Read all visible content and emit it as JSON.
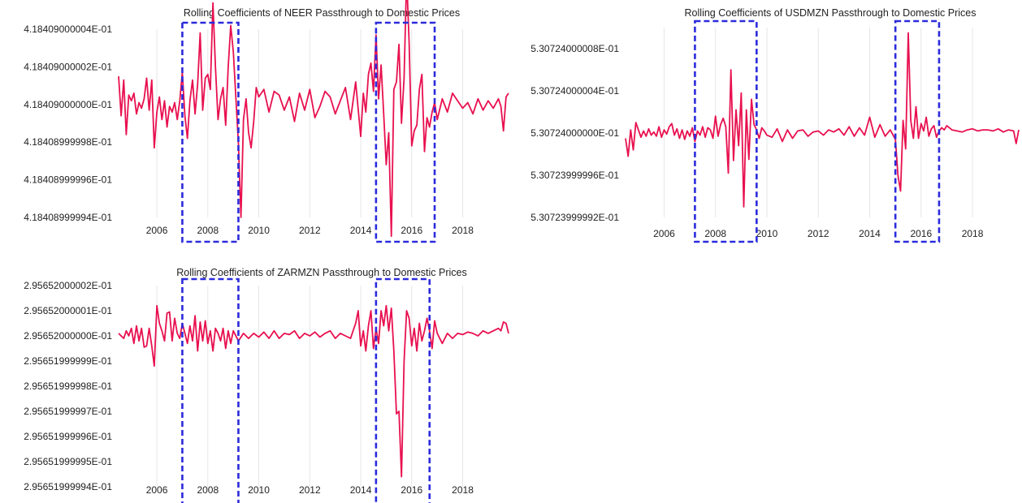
{
  "colors": {
    "series": "#e8104f",
    "box": "#2b2bdc"
  },
  "chart_data": [
    {
      "type": "line",
      "title": "Rolling Coefficients of NEER Passthrough to Domestic Prices",
      "xlabel": "",
      "ylabel": "",
      "xlim": [
        2004.5,
        2019.8
      ],
      "ylim": [
        0.418408999994,
        0.418409000004
      ],
      "x_ticks": [
        2006,
        2008,
        2010,
        2012,
        2014,
        2016,
        2018
      ],
      "x_tick_labels": [
        "2006",
        "2008",
        "2010",
        "2012",
        "2014",
        "2016",
        "2018"
      ],
      "y_ticks": [
        0.418408999994,
        0.418408999996,
        0.418408999998,
        0.418409,
        0.418409000002,
        0.418409000004
      ],
      "y_tick_labels": [
        "4.18408999994E-01",
        "4.18408999996E-01",
        "4.18408999998E-01",
        "4.18409000000E-01",
        "4.18409000002E-01",
        "4.18409000004E-01"
      ],
      "highlight_ranges": [
        [
          2007.0,
          2009.2
        ],
        [
          2014.6,
          2016.9
        ]
      ],
      "base": 0.418409,
      "unit": 1e-12,
      "series": [
        {
          "x": [
            2004.5,
            2004.6,
            2004.7,
            2004.8,
            2004.9,
            2005.0,
            2005.1,
            2005.2,
            2005.3,
            2005.4,
            2005.5,
            2005.6,
            2005.7,
            2005.8,
            2005.9,
            2006.0,
            2006.1,
            2006.2,
            2006.3,
            2006.4,
            2006.5,
            2006.6,
            2006.7,
            2006.8,
            2006.9,
            2007.0,
            2007.1,
            2007.2,
            2007.3,
            2007.4,
            2007.5,
            2007.6,
            2007.7,
            2007.8,
            2007.9,
            2008.0,
            2008.1,
            2008.2,
            2008.3,
            2008.4,
            2008.5,
            2008.6,
            2008.7,
            2008.8,
            2008.9,
            2009.0,
            2009.1,
            2009.2,
            2009.3,
            2009.4,
            2009.5,
            2009.6,
            2009.7,
            2009.8,
            2009.9,
            2010.0,
            2010.2,
            2010.4,
            2010.6,
            2010.8,
            2011.0,
            2011.2,
            2011.4,
            2011.6,
            2011.8,
            2012.0,
            2012.2,
            2012.4,
            2012.6,
            2012.8,
            2013.0,
            2013.2,
            2013.4,
            2013.6,
            2013.8,
            2014.0,
            2014.1,
            2014.2,
            2014.3,
            2014.4,
            2014.5,
            2014.6,
            2014.7,
            2014.8,
            2014.9,
            2015.0,
            2015.1,
            2015.2,
            2015.3,
            2015.4,
            2015.5,
            2015.6,
            2015.7,
            2015.8,
            2015.9,
            2016.0,
            2016.1,
            2016.2,
            2016.3,
            2016.4,
            2016.5,
            2016.6,
            2016.7,
            2016.8,
            2016.9,
            2017.0,
            2017.2,
            2017.4,
            2017.6,
            2017.8,
            2018.0,
            2018.2,
            2018.4,
            2018.6,
            2018.8,
            2019.0,
            2019.2,
            2019.4,
            2019.5,
            2019.6,
            2019.7,
            2019.8
          ],
          "y": [
            1.5,
            -0.6,
            1.3,
            -1.6,
            0.5,
            0.2,
            0.6,
            -0.5,
            0.1,
            -0.2,
            0.3,
            1.4,
            -0.3,
            1.3,
            -2.3,
            -0.4,
            0.4,
            -0.8,
            0.2,
            -1.2,
            -0.1,
            -0.4,
            0.1,
            -0.8,
            0.2,
            1.7,
            -0.6,
            -1.8,
            0.2,
            1.3,
            -0.5,
            1.1,
            3.8,
            -0.3,
            1.4,
            1.6,
            0.8,
            5.4,
            2.0,
            -0.8,
            0.3,
            0.9,
            -1.1,
            2.0,
            4.2,
            2.8,
            0.4,
            -2.1,
            -6.0,
            -0.8,
            0.3,
            -1.5,
            -2.3,
            -0.9,
            0.9,
            0.4,
            0.8,
            -0.4,
            0.7,
            0.5,
            -0.3,
            0.4,
            -0.9,
            0.6,
            -0.3,
            0.8,
            -0.7,
            -0.1,
            0.7,
            0.4,
            -0.5,
            0.2,
            0.9,
            -0.8,
            1.2,
            -1.7,
            0.6,
            -0.4,
            1.6,
            2.2,
            0.7,
            3.7,
            0.3,
            2.1,
            -0.5,
            -3.2,
            -1.5,
            -7.0,
            0.8,
            1.2,
            3.2,
            -1.0,
            1.4,
            6.8,
            3.3,
            -2.2,
            -1.4,
            -1.1,
            0.8,
            1.6,
            -2.5,
            -0.7,
            -1.2,
            -0.4,
            0.1,
            -0.8,
            0.3,
            -0.4,
            0.6,
            0.2,
            -0.2,
            0.1,
            -0.5,
            0.3,
            -0.3,
            0.2,
            -0.2,
            0.3,
            -0.1,
            -1.4,
            0.4,
            0.6
          ]
        }
      ]
    },
    {
      "type": "line",
      "title": "Rolling Coefficients of USDMZN Passthrough to Domestic Prices",
      "xlabel": "",
      "ylabel": "",
      "xlim": [
        2004.5,
        2019.8
      ],
      "ylim": [
        0.530723999992,
        0.53072400001
      ],
      "x_ticks": [
        2006,
        2008,
        2010,
        2012,
        2014,
        2016,
        2018
      ],
      "x_tick_labels": [
        "2006",
        "2008",
        "2010",
        "2012",
        "2014",
        "2016",
        "2018"
      ],
      "y_ticks": [
        0.530723999992,
        0.530723999996,
        0.530724,
        0.530724000004,
        0.530724000008
      ],
      "y_tick_labels": [
        "5.30723999992E-01",
        "5.30723999996E-01",
        "5.30724000000E-01",
        "5.30724000004E-01",
        "5.30724000008E-01"
      ],
      "highlight_ranges": [
        [
          2007.2,
          2009.6
        ],
        [
          2015.0,
          2016.7
        ]
      ],
      "base": 0.530724,
      "unit": 1e-12,
      "series": [
        {
          "x": [
            2004.5,
            2004.6,
            2004.7,
            2004.8,
            2004.9,
            2005.0,
            2005.1,
            2005.2,
            2005.3,
            2005.4,
            2005.5,
            2005.6,
            2005.7,
            2005.8,
            2005.9,
            2006.0,
            2006.1,
            2006.2,
            2006.3,
            2006.4,
            2006.5,
            2006.6,
            2006.7,
            2006.8,
            2006.9,
            2007.0,
            2007.1,
            2007.2,
            2007.3,
            2007.4,
            2007.5,
            2007.6,
            2007.7,
            2007.8,
            2007.9,
            2008.0,
            2008.1,
            2008.2,
            2008.3,
            2008.4,
            2008.5,
            2008.6,
            2008.7,
            2008.8,
            2008.9,
            2009.0,
            2009.1,
            2009.2,
            2009.3,
            2009.4,
            2009.5,
            2009.6,
            2009.7,
            2009.8,
            2009.9,
            2010.0,
            2010.2,
            2010.4,
            2010.6,
            2010.8,
            2011.0,
            2011.2,
            2011.4,
            2011.6,
            2011.8,
            2012.0,
            2012.2,
            2012.4,
            2012.6,
            2012.8,
            2013.0,
            2013.2,
            2013.4,
            2013.6,
            2013.8,
            2014.0,
            2014.2,
            2014.4,
            2014.6,
            2014.8,
            2015.0,
            2015.1,
            2015.2,
            2015.3,
            2015.4,
            2015.5,
            2015.6,
            2015.7,
            2015.8,
            2015.9,
            2016.0,
            2016.1,
            2016.2,
            2016.3,
            2016.4,
            2016.5,
            2016.6,
            2016.7,
            2016.8,
            2016.9,
            2017.0,
            2017.2,
            2017.4,
            2017.6,
            2017.8,
            2018.0,
            2018.2,
            2018.4,
            2018.6,
            2018.8,
            2019.0,
            2019.2,
            2019.4,
            2019.6,
            2019.7,
            2019.8
          ],
          "y": [
            -0.5,
            -2.2,
            0.3,
            -1.6,
            1.0,
            0.3,
            -0.4,
            0.2,
            -0.3,
            0.4,
            -0.2,
            0.1,
            -0.3,
            0.6,
            -0.4,
            0.3,
            -0.1,
            0.6,
            0.9,
            -0.2,
            0.4,
            -0.5,
            0.3,
            -0.6,
            0.2,
            -0.3,
            0.5,
            -0.8,
            0.2,
            -0.2,
            0.6,
            -0.4,
            0.5,
            0.3,
            -0.5,
            1.6,
            -0.3,
            0.8,
            1.4,
            0.6,
            -3.8,
            6.0,
            -2.6,
            2.2,
            -1.2,
            3.8,
            -7.0,
            2.2,
            -2.5,
            3.2,
            0.8,
            0.3,
            -0.5,
            0.5,
            0.2,
            -0.2,
            -0.4,
            0.4,
            -0.8,
            0.3,
            -0.5,
            0.2,
            0.3,
            -0.3,
            0.1,
            0.2,
            -0.2,
            0.3,
            0.1,
            0.4,
            -0.2,
            0.6,
            -0.3,
            0.5,
            -0.2,
            1.5,
            -0.4,
            0.8,
            -0.3,
            0.3,
            -0.6,
            -4.0,
            -5.5,
            1.2,
            -1.5,
            9.5,
            1.2,
            -0.5,
            2.5,
            -0.5,
            0.9,
            0.2,
            1.5,
            -0.3,
            0.4,
            0.7,
            -0.4,
            0.2,
            0.5,
            0.3,
            0.7,
            0.3,
            0.2,
            0.1,
            0.3,
            0.4,
            0.2,
            0.3,
            0.3,
            0.2,
            0.4,
            0.1,
            0.3,
            0.2,
            -1.0,
            0.3
          ]
        }
      ]
    },
    {
      "type": "line",
      "title": "Rolling Coefficients of ZARMZN Passthrough to Domestic Prices",
      "xlabel": "",
      "ylabel": "",
      "xlim": [
        2004.5,
        2019.8
      ],
      "ylim": [
        0.295651999994,
        0.295652000002
      ],
      "x_ticks": [
        2006,
        2008,
        2010,
        2012,
        2014,
        2016,
        2018
      ],
      "x_tick_labels": [
        "2006",
        "2008",
        "2010",
        "2012",
        "2014",
        "2016",
        "2018"
      ],
      "y_ticks": [
        0.295651999994,
        0.295651999995,
        0.295651999996,
        0.295651999997,
        0.295651999998,
        0.295651999999,
        0.295652,
        0.295652000001,
        0.295652000002
      ],
      "y_tick_labels": [
        "2.95651999994E-01",
        "2.95651999995E-01",
        "2.95651999996E-01",
        "2.95651999997E-01",
        "2.95651999998E-01",
        "2.95651999999E-01",
        "2.95652000000E-01",
        "2.95652000001E-01",
        "2.95652000002E-01"
      ],
      "highlight_ranges": [
        [
          2007.0,
          2009.2
        ],
        [
          2014.6,
          2016.7
        ]
      ],
      "base": 0.295652,
      "unit": 1e-12,
      "series": [
        {
          "x": [
            2004.5,
            2004.6,
            2004.7,
            2004.8,
            2004.9,
            2005.0,
            2005.1,
            2005.2,
            2005.3,
            2005.4,
            2005.5,
            2005.6,
            2005.7,
            2005.8,
            2005.9,
            2006.0,
            2006.1,
            2006.2,
            2006.3,
            2006.4,
            2006.5,
            2006.6,
            2006.7,
            2006.8,
            2006.9,
            2007.0,
            2007.1,
            2007.2,
            2007.3,
            2007.4,
            2007.5,
            2007.6,
            2007.7,
            2007.8,
            2007.9,
            2008.0,
            2008.1,
            2008.2,
            2008.3,
            2008.4,
            2008.5,
            2008.6,
            2008.7,
            2008.8,
            2008.9,
            2009.0,
            2009.2,
            2009.4,
            2009.6,
            2009.8,
            2010.0,
            2010.2,
            2010.4,
            2010.6,
            2010.8,
            2011.0,
            2011.2,
            2011.4,
            2011.6,
            2011.8,
            2012.0,
            2012.2,
            2012.4,
            2012.6,
            2012.8,
            2013.0,
            2013.2,
            2013.4,
            2013.6,
            2013.8,
            2013.9,
            2014.0,
            2014.1,
            2014.2,
            2014.3,
            2014.4,
            2014.5,
            2014.6,
            2014.7,
            2014.8,
            2014.9,
            2015.0,
            2015.1,
            2015.2,
            2015.3,
            2015.4,
            2015.5,
            2015.6,
            2015.7,
            2015.8,
            2015.9,
            2016.0,
            2016.1,
            2016.2,
            2016.3,
            2016.4,
            2016.5,
            2016.6,
            2016.7,
            2016.8,
            2016.9,
            2017.0,
            2017.2,
            2017.4,
            2017.6,
            2017.8,
            2018.0,
            2018.2,
            2018.4,
            2018.6,
            2018.8,
            2019.0,
            2019.2,
            2019.4,
            2019.5,
            2019.6,
            2019.7,
            2019.8
          ],
          "y": [
            0.1,
            0.0,
            -0.1,
            0.2,
            0.0,
            0.3,
            -0.3,
            0.4,
            -0.2,
            0.3,
            -0.45,
            -0.4,
            0.3,
            -0.4,
            -1.2,
            1.2,
            0.5,
            0.2,
            -0.2,
            0.9,
            0.95,
            -0.2,
            0.7,
            0.1,
            -0.1,
            0.5,
            0.1,
            -0.3,
            0.4,
            -0.2,
            0.8,
            -0.6,
            0.55,
            -0.2,
            0.6,
            -0.3,
            0.2,
            -0.6,
            0.3,
            0.1,
            -0.2,
            0.3,
            -0.5,
            0.2,
            -0.3,
            0.2,
            -0.2,
            0.1,
            -0.1,
            0.1,
            -0.05,
            0.15,
            -0.1,
            0.2,
            -0.1,
            0.1,
            0.05,
            0.2,
            -0.1,
            0.1,
            0.0,
            0.15,
            -0.05,
            0.1,
            0.2,
            -0.1,
            0.1,
            0.0,
            -0.1,
            0.5,
            1.0,
            -0.4,
            0.2,
            -0.6,
            0.4,
            1.0,
            -0.5,
            0.3,
            -0.3,
            1.0,
            0.4,
            1.2,
            0.2,
            1.1,
            -0.6,
            -3.1,
            -3.0,
            -5.6,
            -1.0,
            1.0,
            0.7,
            -0.4,
            0.3,
            -0.6,
            0.5,
            -0.2,
            0.2,
            0.7,
            0.2,
            -0.5,
            0.6,
            0.1,
            -0.3,
            0.1,
            -0.1,
            0.1,
            0.05,
            0.15,
            0.1,
            0.0,
            0.2,
            0.1,
            0.2,
            0.3,
            0.2,
            0.55,
            0.5,
            0.1
          ]
        }
      ]
    }
  ]
}
